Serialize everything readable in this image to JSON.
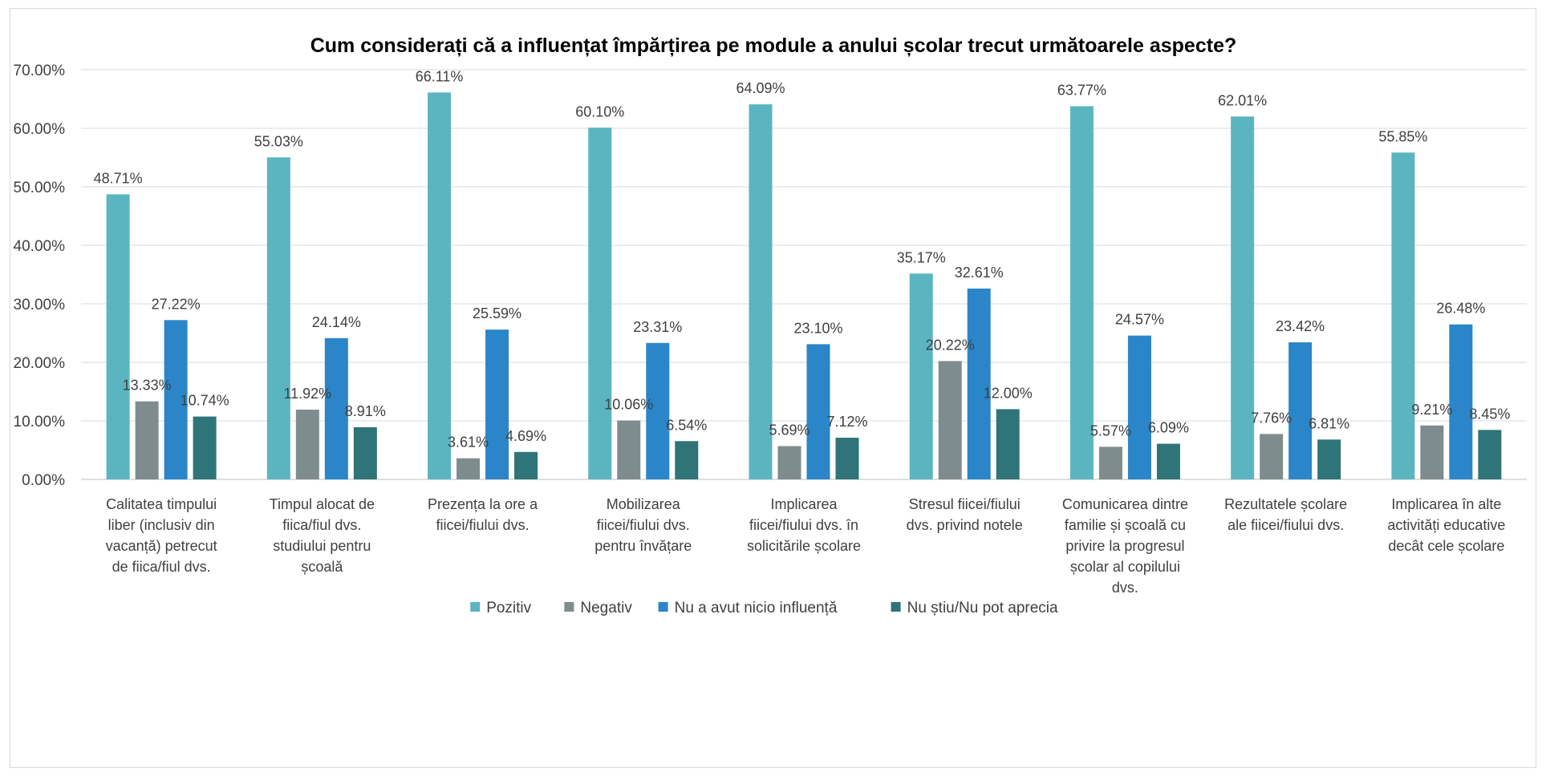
{
  "chart_data": {
    "type": "bar",
    "title": "Cum considerați că a influențat împărțirea pe module a anului școlar trecut următoarele aspecte?",
    "xlabel": "",
    "ylabel": "",
    "ylim": [
      0,
      70
    ],
    "yticks": [
      "0.00%",
      "10.00%",
      "20.00%",
      "30.00%",
      "40.00%",
      "50.00%",
      "60.00%",
      "70.00%"
    ],
    "grid": true,
    "legend_position": "bottom",
    "categories": [
      [
        "Calitatea timpului",
        "liber (inclusiv din",
        "vacanță) petrecut",
        "de fiica/fiul dvs."
      ],
      [
        "Timpul alocat de",
        "fiica/fiul dvs.",
        "studiului pentru",
        "școală"
      ],
      [
        "Prezența la ore a",
        "fiicei/fiului dvs."
      ],
      [
        "Mobilizarea",
        "fiicei/fiului dvs.",
        "pentru învățare"
      ],
      [
        "Implicarea",
        "fiicei/fiului dvs. în",
        "solicitările școlare"
      ],
      [
        "Stresul fiicei/fiului",
        "dvs. privind notele"
      ],
      [
        "Comunicarea dintre",
        "familie și școală cu",
        "privire la progresul",
        "școlar al copilului",
        "dvs."
      ],
      [
        "Rezultatele școlare",
        "ale fiicei/fiului dvs."
      ],
      [
        "Implicarea în alte",
        "activități educative",
        "decât cele școlare"
      ]
    ],
    "series": [
      {
        "name": "Pozitiv",
        "color": "#5bb5c1",
        "values": [
          48.71,
          55.03,
          66.11,
          60.1,
          64.09,
          35.17,
          63.77,
          62.01,
          55.85
        ],
        "labels": [
          "48.71%",
          "55.03%",
          "66.11%",
          "60.10%",
          "64.09%",
          "35.17%",
          "63.77%",
          "62.01%",
          "55.85%"
        ]
      },
      {
        "name": "Negativ",
        "color": "#7f8c8d",
        "values": [
          13.33,
          11.92,
          3.61,
          10.06,
          5.69,
          20.22,
          5.57,
          7.76,
          9.21
        ],
        "labels": [
          "13.33%",
          "11.92%",
          "3.61%",
          "10.06%",
          "5.69%",
          "20.22%",
          "5.57%",
          "7.76%",
          "9.21%"
        ]
      },
      {
        "name": "Nu a avut nicio influență",
        "color": "#2a86c8",
        "values": [
          27.22,
          24.14,
          25.59,
          23.31,
          23.1,
          32.61,
          24.57,
          23.42,
          26.48
        ],
        "labels": [
          "27.22%",
          "24.14%",
          "25.59%",
          "23.31%",
          "23.10%",
          "32.61%",
          "24.57%",
          "23.42%",
          "26.48%"
        ]
      },
      {
        "name": "Nu știu/Nu pot aprecia",
        "color": "#2e7478",
        "values": [
          10.74,
          8.91,
          4.69,
          6.54,
          7.12,
          12.0,
          6.09,
          6.81,
          8.45
        ],
        "labels": [
          "10.74%",
          "8.91%",
          "4.69%",
          "6.54%",
          "7.12%",
          "12.00%",
          "6.09%",
          "6.81%",
          "8.45%"
        ]
      }
    ]
  }
}
